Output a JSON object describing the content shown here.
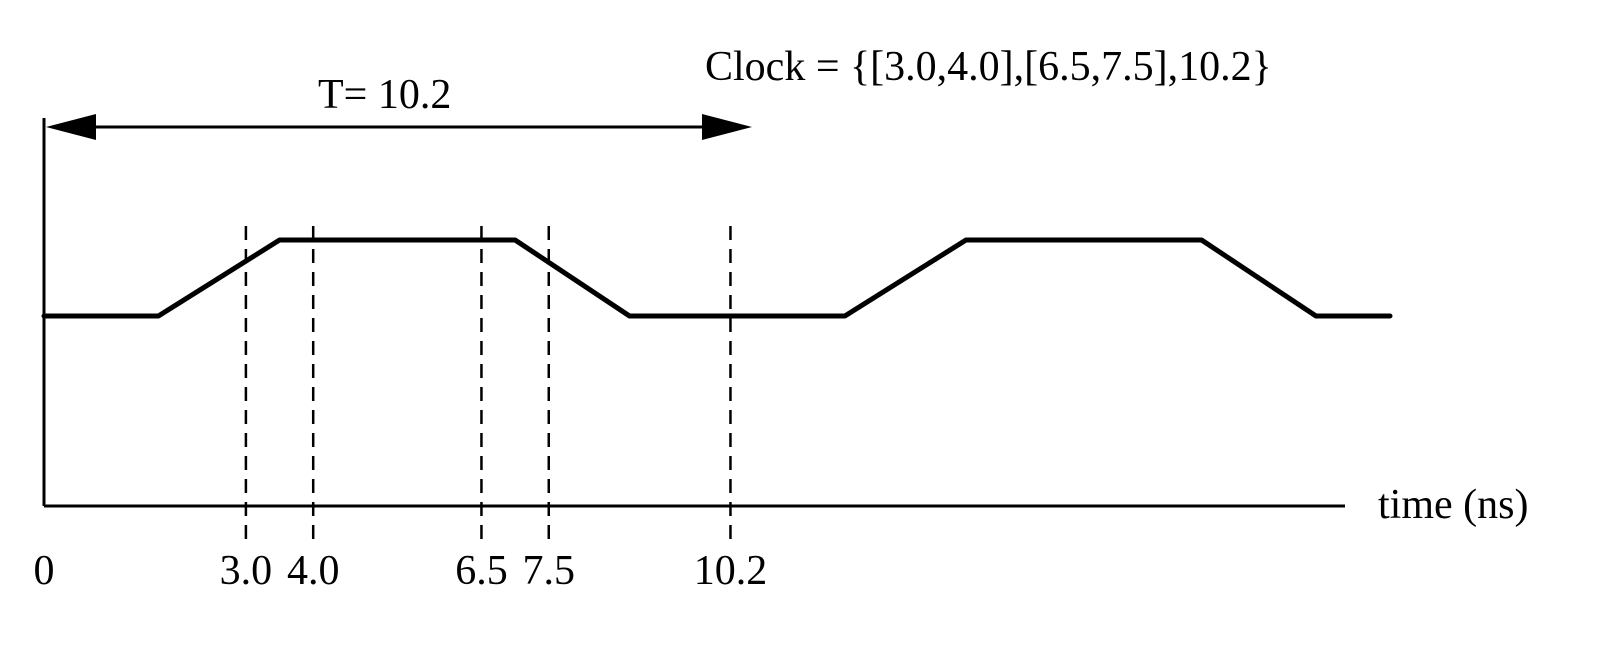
{
  "clock_spec": "Clock = {[3.0,4.0],[6.5,7.5],10.2}",
  "period": {
    "label": "T= 10.2",
    "from": 0,
    "to": 10.2
  },
  "time_axis": {
    "label": "time (ns)"
  },
  "tick_labels": [
    {
      "value": 0,
      "text": "0"
    },
    {
      "value": 3.0,
      "text": "3.0"
    },
    {
      "value": 4.0,
      "text": "4.0"
    },
    {
      "value": 6.5,
      "text": "6.5"
    },
    {
      "value": 7.5,
      "text": "7.5"
    },
    {
      "value": 10.2,
      "text": "10.2"
    }
  ],
  "markers": [
    3.0,
    4.0,
    6.5,
    7.5,
    10.2
  ],
  "waveform": [
    {
      "t": 0.0,
      "level": "low"
    },
    {
      "t": 1.7,
      "level": "low"
    },
    {
      "t": 3.5,
      "level": "high"
    },
    {
      "t": 7.0,
      "level": "high"
    },
    {
      "t": 8.7,
      "level": "low"
    },
    {
      "t": 11.9,
      "level": "low"
    },
    {
      "t": 13.7,
      "level": "high"
    },
    {
      "t": 17.2,
      "level": "high"
    },
    {
      "t": 18.9,
      "level": "low"
    },
    {
      "t": 20.0,
      "level": "low"
    }
  ]
}
